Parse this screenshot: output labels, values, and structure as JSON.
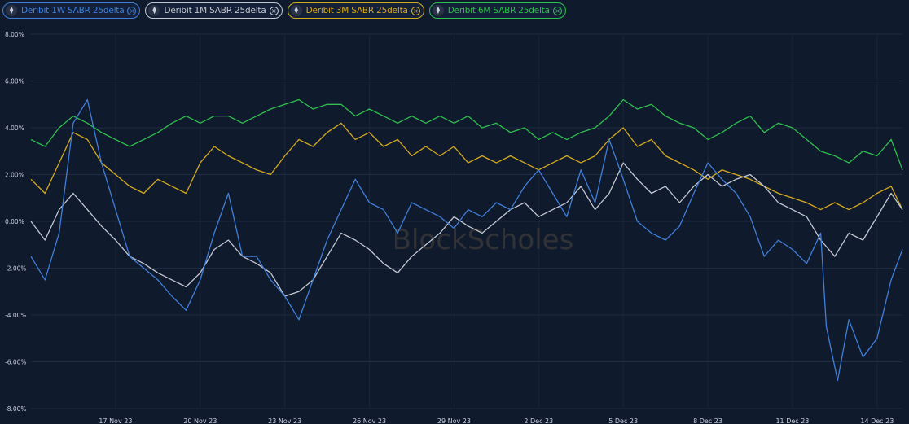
{
  "legend": [
    {
      "label": "Deribit 1W SABR 25delta",
      "color": "#3f7fd9"
    },
    {
      "label": "Deribit 1M SABR 25delta",
      "color": "#c3c8d2"
    },
    {
      "label": "Deribit 3M SABR 25delta",
      "color": "#d4aa1f"
    },
    {
      "label": "Deribit 6M SABR 25delta",
      "color": "#2fbf4e"
    }
  ],
  "legend_icons": {
    "series": "ethereum-icon",
    "remove": "close-circle-icon"
  },
  "watermark": "BlockScholes",
  "chart_data": {
    "type": "line",
    "ylim": [
      -8,
      8
    ],
    "y_ticks": [
      "8.00%",
      "6.00%",
      "4.00%",
      "2.00%",
      "0.00%",
      "-2.00%",
      "-4.00%",
      "-6.00%",
      "-8.00%"
    ],
    "y_tick_values": [
      8,
      6,
      4,
      2,
      0,
      -2,
      -4,
      -6,
      -8
    ],
    "x_ticks": [
      "17 Nov 23",
      "20 Nov 23",
      "23 Nov 23",
      "26 Nov 23",
      "29 Nov 23",
      "2 Dec 23",
      "5 Dec 23",
      "8 Dec 23",
      "11 Dec 23",
      "14 Dec 23"
    ],
    "x_tick_days": [
      3,
      6,
      9,
      12,
      15,
      18,
      21,
      24,
      27,
      30
    ],
    "x_range_days": [
      0,
      30.9
    ],
    "grid": true,
    "series": [
      {
        "name": "Deribit 1W SABR 25delta",
        "color": "#3f7fd9",
        "x": [
          0,
          0.5,
          1,
          1.5,
          2,
          2.5,
          3,
          3.5,
          4,
          4.5,
          5,
          5.5,
          6,
          6.5,
          7,
          7.5,
          8,
          8.5,
          9,
          9.5,
          10,
          10.5,
          11,
          11.5,
          12,
          12.5,
          13,
          13.5,
          14,
          14.5,
          15,
          15.5,
          16,
          16.5,
          17,
          17.5,
          18,
          18.5,
          19,
          19.5,
          20,
          20.5,
          21,
          21.5,
          22,
          22.5,
          23,
          23.5,
          24,
          24.5,
          25,
          25.5,
          26,
          26.5,
          27,
          27.5,
          28,
          28.2,
          28.6,
          29,
          29.5,
          30,
          30.5,
          30.9
        ],
        "y": [
          -1.5,
          -2.5,
          -0.5,
          4.2,
          5.2,
          2.5,
          0.5,
          -1.5,
          -2,
          -2.5,
          -3.2,
          -3.8,
          -2.5,
          -0.5,
          1.2,
          -1.5,
          -1.5,
          -2.5,
          -3.2,
          -4.2,
          -2.5,
          -0.8,
          0.5,
          1.8,
          0.8,
          0.5,
          -0.5,
          0.8,
          0.5,
          0.2,
          -0.3,
          0.5,
          0.2,
          0.8,
          0.5,
          1.5,
          2.2,
          1.2,
          0.2,
          2.2,
          0.8,
          3.5,
          1.8,
          0,
          -0.5,
          -0.8,
          -0.2,
          1.2,
          2.5,
          1.8,
          1.2,
          0.2,
          -1.5,
          -0.8,
          -1.2,
          -1.8,
          -0.5,
          -4.5,
          -6.8,
          -4.2,
          -5.8,
          -5,
          -2.5,
          -1.2
        ]
      },
      {
        "name": "Deribit 1M SABR 25delta",
        "color": "#c3c8d2",
        "x": [
          0,
          0.5,
          1,
          1.5,
          2,
          2.5,
          3,
          3.5,
          4,
          4.5,
          5,
          5.5,
          6,
          6.5,
          7,
          7.5,
          8,
          8.5,
          9,
          9.5,
          10,
          10.5,
          11,
          11.5,
          12,
          12.5,
          13,
          13.5,
          14,
          14.5,
          15,
          15.5,
          16,
          16.5,
          17,
          17.5,
          18,
          18.5,
          19,
          19.5,
          20,
          20.5,
          21,
          21.5,
          22,
          22.5,
          23,
          23.5,
          24,
          24.5,
          25,
          25.5,
          26,
          26.5,
          27,
          27.5,
          28,
          28.5,
          29,
          29.5,
          30,
          30.5,
          30.9
        ],
        "y": [
          0,
          -0.8,
          0.5,
          1.2,
          0.5,
          -0.2,
          -0.8,
          -1.5,
          -1.8,
          -2.2,
          -2.5,
          -2.8,
          -2.2,
          -1.2,
          -0.8,
          -1.5,
          -1.8,
          -2.2,
          -3.2,
          -3,
          -2.5,
          -1.5,
          -0.5,
          -0.8,
          -1.2,
          -1.8,
          -2.2,
          -1.5,
          -1,
          -0.5,
          0.2,
          -0.2,
          -0.5,
          0,
          0.5,
          0.8,
          0.2,
          0.5,
          0.8,
          1.5,
          0.5,
          1.2,
          2.5,
          1.8,
          1.2,
          1.5,
          0.8,
          1.5,
          2,
          1.5,
          1.8,
          2,
          1.5,
          0.8,
          0.5,
          0.2,
          -0.8,
          -1.5,
          -0.5,
          -0.8,
          0.2,
          1.2,
          0.5
        ]
      },
      {
        "name": "Deribit 3M SABR 25delta",
        "color": "#d4aa1f",
        "x": [
          0,
          0.5,
          1,
          1.5,
          2,
          2.5,
          3,
          3.5,
          4,
          4.5,
          5,
          5.5,
          6,
          6.5,
          7,
          7.5,
          8,
          8.5,
          9,
          9.5,
          10,
          10.5,
          11,
          11.5,
          12,
          12.5,
          13,
          13.5,
          14,
          14.5,
          15,
          15.5,
          16,
          16.5,
          17,
          17.5,
          18,
          18.5,
          19,
          19.5,
          20,
          20.5,
          21,
          21.5,
          22,
          22.5,
          23,
          23.5,
          24,
          24.5,
          25,
          25.5,
          26,
          26.5,
          27,
          27.5,
          28,
          28.5,
          29,
          29.5,
          30,
          30.5,
          30.9
        ],
        "y": [
          1.8,
          1.2,
          2.5,
          3.8,
          3.5,
          2.5,
          2,
          1.5,
          1.2,
          1.8,
          1.5,
          1.2,
          2.5,
          3.2,
          2.8,
          2.5,
          2.2,
          2,
          2.8,
          3.5,
          3.2,
          3.8,
          4.2,
          3.5,
          3.8,
          3.2,
          3.5,
          2.8,
          3.2,
          2.8,
          3.2,
          2.5,
          2.8,
          2.5,
          2.8,
          2.5,
          2.2,
          2.5,
          2.8,
          2.5,
          2.8,
          3.5,
          4,
          3.2,
          3.5,
          2.8,
          2.5,
          2.2,
          1.8,
          2.2,
          2,
          1.8,
          1.5,
          1.2,
          1,
          0.8,
          0.5,
          0.8,
          0.5,
          0.8,
          1.2,
          1.5,
          0.5
        ]
      },
      {
        "name": "Deribit 6M SABR 25delta",
        "color": "#2fbf4e",
        "x": [
          0,
          0.5,
          1,
          1.5,
          2,
          2.5,
          3,
          3.5,
          4,
          4.5,
          5,
          5.5,
          6,
          6.5,
          7,
          7.5,
          8,
          8.5,
          9,
          9.5,
          10,
          10.5,
          11,
          11.5,
          12,
          12.5,
          13,
          13.5,
          14,
          14.5,
          15,
          15.5,
          16,
          16.5,
          17,
          17.5,
          18,
          18.5,
          19,
          19.5,
          20,
          20.5,
          21,
          21.5,
          22,
          22.5,
          23,
          23.5,
          24,
          24.5,
          25,
          25.5,
          26,
          26.5,
          27,
          27.5,
          28,
          28.5,
          29,
          29.5,
          30,
          30.5,
          30.9
        ],
        "y": [
          3.5,
          3.2,
          4,
          4.5,
          4.2,
          3.8,
          3.5,
          3.2,
          3.5,
          3.8,
          4.2,
          4.5,
          4.2,
          4.5,
          4.5,
          4.2,
          4.5,
          4.8,
          5,
          5.2,
          4.8,
          5,
          5,
          4.5,
          4.8,
          4.5,
          4.2,
          4.5,
          4.2,
          4.5,
          4.2,
          4.5,
          4,
          4.2,
          3.8,
          4,
          3.5,
          3.8,
          3.5,
          3.8,
          4,
          4.5,
          5.2,
          4.8,
          5,
          4.5,
          4.2,
          4,
          3.5,
          3.8,
          4.2,
          4.5,
          3.8,
          4.2,
          4,
          3.5,
          3,
          2.8,
          2.5,
          3,
          2.8,
          3.5,
          2.2
        ]
      }
    ]
  }
}
